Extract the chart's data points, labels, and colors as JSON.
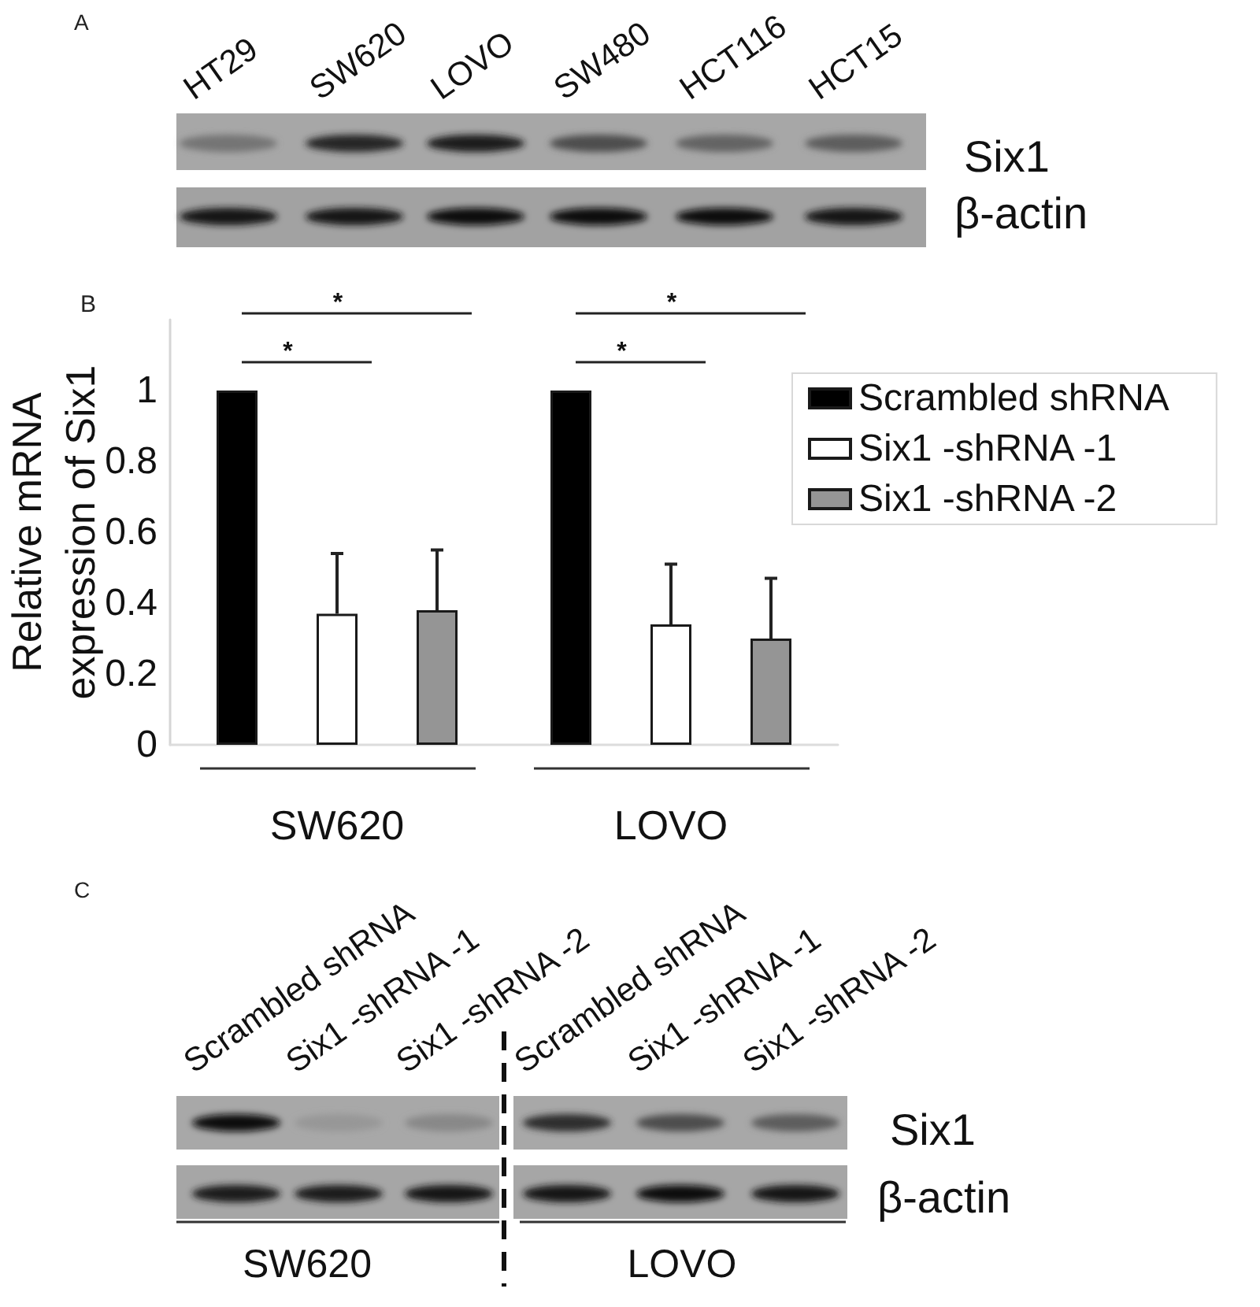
{
  "chart_data": [
    {
      "type": "other",
      "title": "A",
      "annotations": [
        "HT29",
        "SW620",
        "LOVO",
        "SW480",
        "HCT116",
        "HCT15",
        "Six1",
        "β-actin"
      ]
    },
    {
      "type": "bar",
      "title": "B",
      "ylabel": "Relative mRNA expression of Six1",
      "categories": [
        "SW620",
        "LOVO"
      ],
      "series": [
        {
          "name": "Scrambled shRNA",
          "color": "#000000",
          "values": [
            1,
            1
          ]
        },
        {
          "name": "Six1 -shRNA -1",
          "color": "#ffffff",
          "values": [
            0.37,
            0.34
          ],
          "errors": [
            [
              0.37,
              0.54
            ],
            [
              0.34,
              0.51
            ]
          ]
        },
        {
          "name": "Six1 -shRNA -2",
          "color": "#959595",
          "values": [
            0.38,
            0.3
          ],
          "errors": [
            [
              0.38,
              0.55
            ],
            [
              0.3,
              0.47
            ]
          ]
        }
      ],
      "ylim": [
        0,
        1.2
      ],
      "yticks": [
        0,
        0.2,
        0.4,
        0.6,
        0.8,
        1
      ],
      "legend": "right",
      "annotations": [
        "*",
        "*",
        "*",
        "*"
      ]
    },
    {
      "type": "other",
      "title": "C",
      "annotations": [
        "Scrambled shRNA",
        "Six1 -shRNA -1",
        "Six1 -shRNA -2",
        "Scrambled shRNA",
        "Six1 -shRNA -1",
        "Six1 -shRNA -2",
        "Six1",
        "β-actin",
        "SW620",
        "LOVO"
      ]
    }
  ]
}
